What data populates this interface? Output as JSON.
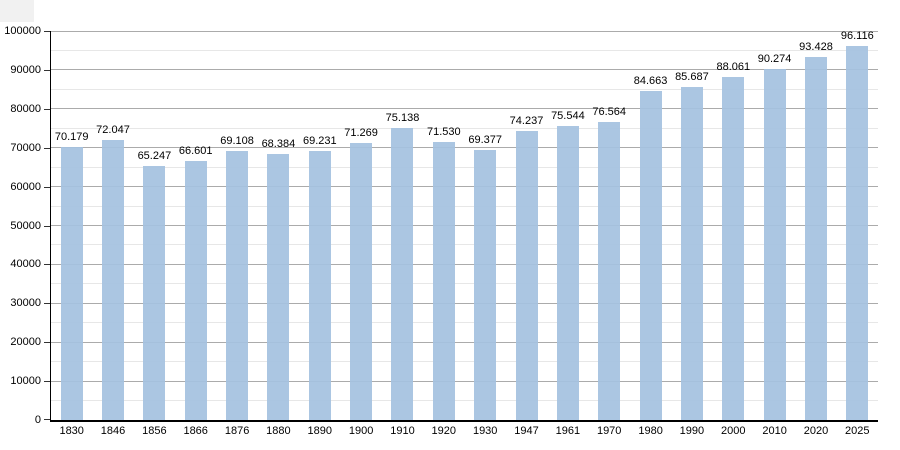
{
  "chart_data": {
    "type": "bar",
    "title": "",
    "xlabel": "",
    "ylabel": "",
    "categories": [
      "1830",
      "1846",
      "1856",
      "1866",
      "1876",
      "1880",
      "1890",
      "1900",
      "1910",
      "1920",
      "1930",
      "1947",
      "1961",
      "1970",
      "1980",
      "1990",
      "2000",
      "2010",
      "2020",
      "2025"
    ],
    "values": [
      70179,
      72047,
      65247,
      66601,
      69108,
      68384,
      69231,
      71269,
      75138,
      71530,
      69377,
      74237,
      75544,
      76564,
      84663,
      85687,
      88061,
      90274,
      93428,
      96116
    ],
    "bar_labels": [
      "70.179",
      "72.047",
      "65.247",
      "66.601",
      "69.108",
      "68.384",
      "69.231",
      "71.269",
      "75.138",
      "71.530",
      "69.377",
      "74.237",
      "75.544",
      "76.564",
      "84.663",
      "85.687",
      "88.061",
      "90.274",
      "93.428",
      "96.116"
    ],
    "ylim": [
      0,
      100000
    ],
    "ytick_step": 10000,
    "yminor_step": 5000,
    "ytick_labels": [
      "0",
      "10000",
      "20000",
      "30000",
      "40000",
      "50000",
      "60000",
      "70000",
      "80000",
      "90000",
      "100000"
    ],
    "grid": "horizontal, major and minor, behind bars",
    "legend": "none",
    "bar_color": "#abc6e2",
    "major_grid_color": "#ababab",
    "minor_grid_color": "#e7e7e7",
    "axis_color": "#000000"
  }
}
